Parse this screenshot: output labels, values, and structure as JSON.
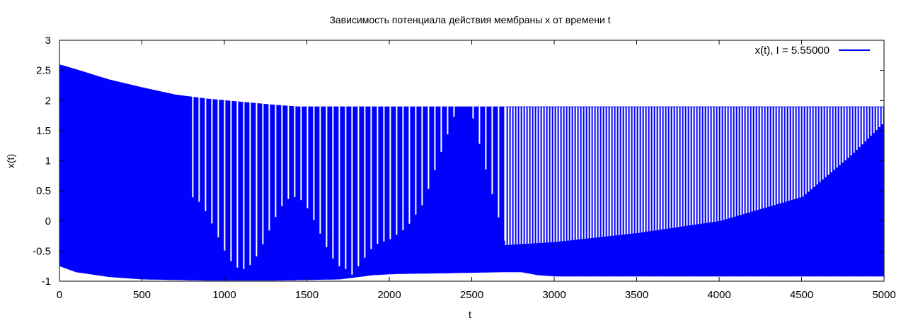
{
  "chart_data": {
    "type": "line",
    "title": "Зависимость потенциала действия мембраны x от времени t",
    "xlabel": "t",
    "ylabel": "x(t)",
    "xlim": [
      0,
      5000
    ],
    "ylim": [
      -1,
      3
    ],
    "x_ticks": [
      "0",
      "500",
      "1000",
      "1500",
      "2000",
      "2500",
      "3000",
      "3500",
      "4000",
      "4500",
      "5000"
    ],
    "y_ticks": [
      "3",
      "2.5",
      "2",
      "1.5",
      "1",
      "0.5",
      "0",
      "-0.5",
      "-1"
    ],
    "legend_position": "top-right",
    "grid": false,
    "series": [
      {
        "name": "x(t), I = 5.55000",
        "color": "#0000ff",
        "upper_envelope": {
          "x": [
            0,
            100,
            300,
            500,
            700,
            900,
            1100,
            1300,
            1450,
            1600,
            2000,
            2400,
            2500,
            2700,
            3000,
            5000
          ],
          "y": [
            2.6,
            2.52,
            2.35,
            2.22,
            2.1,
            2.03,
            1.98,
            1.93,
            1.9,
            1.9,
            1.9,
            1.9,
            1.9,
            1.9,
            1.9,
            1.9
          ]
        },
        "lower_envelope": {
          "x": [
            0,
            100,
            300,
            500,
            700,
            900,
            1100,
            1300,
            1500,
            1700,
            1900,
            2050,
            2300,
            2500,
            2700,
            2800,
            2900,
            3000,
            3500,
            4000,
            4500,
            5000
          ],
          "y": [
            -0.75,
            -0.85,
            -0.93,
            -0.97,
            -0.98,
            -0.99,
            -0.99,
            -0.99,
            -0.98,
            -0.97,
            -0.9,
            -0.88,
            -0.87,
            -0.86,
            -0.85,
            -0.85,
            -0.9,
            -0.92,
            -0.92,
            -0.92,
            -0.92,
            -0.92
          ]
        },
        "inner_upper_edge": {
          "x": [
            1750,
            1900,
            2000,
            2100,
            2200,
            2300,
            2400,
            2450,
            2500,
            2600,
            2700,
            3000,
            3500,
            4000,
            4500,
            4800,
            5000
          ],
          "y": [
            -0.95,
            -0.4,
            -0.3,
            -0.1,
            0.3,
            1.1,
            1.85,
            1.9,
            1.7,
            0.6,
            -0.4,
            -0.35,
            -0.2,
            0.0,
            0.4,
            1.1,
            1.65
          ]
        }
      }
    ]
  }
}
